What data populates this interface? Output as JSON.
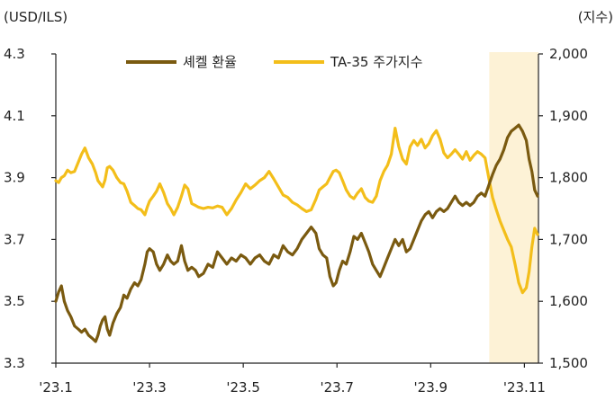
{
  "chart_data": {
    "type": "line",
    "title": "",
    "left_axis": {
      "unit_label": "(USD/ILS)",
      "min": 3.3,
      "max": 4.3,
      "ticks": [
        "3.3",
        "3.5",
        "3.7",
        "3.9",
        "4.1",
        "4.3"
      ]
    },
    "right_axis": {
      "unit_label": "(지수)",
      "min": 1500,
      "max": 2000,
      "ticks": [
        "1,500",
        "1,600",
        "1,700",
        "1,800",
        "1,900",
        "2,000"
      ]
    },
    "x_axis": {
      "ticks": [
        "'23.1",
        "'23.3",
        "'23.5",
        "'23.7",
        "'23.9",
        "'23.11"
      ],
      "range_months": [
        0,
        10.3
      ]
    },
    "highlight": {
      "from_month": 9.25,
      "to_month": 10.3,
      "color": "#fdf2d6"
    },
    "legend_position": "top-center",
    "series": [
      {
        "name": "셰켈 환율",
        "axis": "left",
        "color": "#7a5a10",
        "points": [
          [
            0.0,
            3.5
          ],
          [
            0.06,
            3.53
          ],
          [
            0.12,
            3.55
          ],
          [
            0.18,
            3.5
          ],
          [
            0.25,
            3.47
          ],
          [
            0.32,
            3.45
          ],
          [
            0.4,
            3.42
          ],
          [
            0.48,
            3.41
          ],
          [
            0.55,
            3.4
          ],
          [
            0.62,
            3.41
          ],
          [
            0.7,
            3.39
          ],
          [
            0.78,
            3.38
          ],
          [
            0.85,
            3.37
          ],
          [
            0.9,
            3.39
          ],
          [
            0.95,
            3.42
          ],
          [
            1.0,
            3.44
          ],
          [
            1.05,
            3.45
          ],
          [
            1.1,
            3.41
          ],
          [
            1.15,
            3.39
          ],
          [
            1.22,
            3.43
          ],
          [
            1.3,
            3.46
          ],
          [
            1.38,
            3.48
          ],
          [
            1.45,
            3.52
          ],
          [
            1.52,
            3.51
          ],
          [
            1.6,
            3.54
          ],
          [
            1.68,
            3.56
          ],
          [
            1.75,
            3.55
          ],
          [
            1.82,
            3.57
          ],
          [
            1.9,
            3.62
          ],
          [
            1.95,
            3.66
          ],
          [
            2.0,
            3.67
          ],
          [
            2.08,
            3.66
          ],
          [
            2.15,
            3.62
          ],
          [
            2.22,
            3.6
          ],
          [
            2.3,
            3.62
          ],
          [
            2.38,
            3.65
          ],
          [
            2.45,
            3.63
          ],
          [
            2.52,
            3.62
          ],
          [
            2.6,
            3.63
          ],
          [
            2.68,
            3.68
          ],
          [
            2.75,
            3.63
          ],
          [
            2.82,
            3.6
          ],
          [
            2.9,
            3.61
          ],
          [
            2.98,
            3.6
          ],
          [
            3.05,
            3.58
          ],
          [
            3.15,
            3.59
          ],
          [
            3.25,
            3.62
          ],
          [
            3.35,
            3.61
          ],
          [
            3.45,
            3.66
          ],
          [
            3.55,
            3.64
          ],
          [
            3.65,
            3.62
          ],
          [
            3.75,
            3.64
          ],
          [
            3.85,
            3.63
          ],
          [
            3.95,
            3.65
          ],
          [
            4.05,
            3.64
          ],
          [
            4.15,
            3.62
          ],
          [
            4.25,
            3.64
          ],
          [
            4.35,
            3.65
          ],
          [
            4.45,
            3.63
          ],
          [
            4.55,
            3.62
          ],
          [
            4.65,
            3.65
          ],
          [
            4.75,
            3.64
          ],
          [
            4.85,
            3.68
          ],
          [
            4.95,
            3.66
          ],
          [
            5.05,
            3.65
          ],
          [
            5.15,
            3.67
          ],
          [
            5.25,
            3.7
          ],
          [
            5.35,
            3.72
          ],
          [
            5.45,
            3.74
          ],
          [
            5.55,
            3.72
          ],
          [
            5.62,
            3.67
          ],
          [
            5.7,
            3.65
          ],
          [
            5.78,
            3.64
          ],
          [
            5.85,
            3.58
          ],
          [
            5.92,
            3.55
          ],
          [
            5.98,
            3.56
          ],
          [
            6.05,
            3.6
          ],
          [
            6.12,
            3.63
          ],
          [
            6.2,
            3.62
          ],
          [
            6.28,
            3.66
          ],
          [
            6.36,
            3.71
          ],
          [
            6.44,
            3.7
          ],
          [
            6.52,
            3.72
          ],
          [
            6.6,
            3.69
          ],
          [
            6.68,
            3.66
          ],
          [
            6.76,
            3.62
          ],
          [
            6.84,
            3.6
          ],
          [
            6.92,
            3.58
          ],
          [
            7.0,
            3.61
          ],
          [
            7.08,
            3.64
          ],
          [
            7.16,
            3.67
          ],
          [
            7.24,
            3.7
          ],
          [
            7.32,
            3.68
          ],
          [
            7.4,
            3.7
          ],
          [
            7.48,
            3.66
          ],
          [
            7.56,
            3.67
          ],
          [
            7.64,
            3.7
          ],
          [
            7.72,
            3.73
          ],
          [
            7.8,
            3.76
          ],
          [
            7.88,
            3.78
          ],
          [
            7.96,
            3.79
          ],
          [
            8.04,
            3.77
          ],
          [
            8.12,
            3.79
          ],
          [
            8.2,
            3.8
          ],
          [
            8.28,
            3.79
          ],
          [
            8.36,
            3.8
          ],
          [
            8.44,
            3.82
          ],
          [
            8.52,
            3.84
          ],
          [
            8.6,
            3.82
          ],
          [
            8.68,
            3.81
          ],
          [
            8.76,
            3.82
          ],
          [
            8.84,
            3.81
          ],
          [
            8.92,
            3.82
          ],
          [
            9.0,
            3.84
          ],
          [
            9.08,
            3.85
          ],
          [
            9.16,
            3.84
          ],
          [
            9.25,
            3.88
          ],
          [
            9.32,
            3.91
          ],
          [
            9.4,
            3.94
          ],
          [
            9.48,
            3.96
          ],
          [
            9.56,
            3.99
          ],
          [
            9.64,
            4.03
          ],
          [
            9.72,
            4.05
          ],
          [
            9.8,
            4.06
          ],
          [
            9.88,
            4.07
          ],
          [
            9.96,
            4.05
          ],
          [
            10.04,
            4.02
          ],
          [
            10.1,
            3.96
          ],
          [
            10.16,
            3.92
          ],
          [
            10.22,
            3.86
          ],
          [
            10.28,
            3.84
          ]
        ]
      },
      {
        "name": "TA-35 주가지수",
        "axis": "right",
        "color": "#f3be1a",
        "points": [
          [
            0.0,
            1795
          ],
          [
            0.06,
            1792
          ],
          [
            0.12,
            1800
          ],
          [
            0.18,
            1803
          ],
          [
            0.25,
            1812
          ],
          [
            0.32,
            1808
          ],
          [
            0.4,
            1810
          ],
          [
            0.48,
            1825
          ],
          [
            0.55,
            1838
          ],
          [
            0.62,
            1848
          ],
          [
            0.7,
            1832
          ],
          [
            0.78,
            1822
          ],
          [
            0.85,
            1808
          ],
          [
            0.9,
            1795
          ],
          [
            0.95,
            1790
          ],
          [
            1.0,
            1785
          ],
          [
            1.05,
            1796
          ],
          [
            1.1,
            1816
          ],
          [
            1.15,
            1818
          ],
          [
            1.22,
            1812
          ],
          [
            1.3,
            1800
          ],
          [
            1.38,
            1792
          ],
          [
            1.45,
            1790
          ],
          [
            1.52,
            1778
          ],
          [
            1.6,
            1760
          ],
          [
            1.68,
            1755
          ],
          [
            1.75,
            1750
          ],
          [
            1.82,
            1748
          ],
          [
            1.9,
            1740
          ],
          [
            1.95,
            1752
          ],
          [
            2.0,
            1762
          ],
          [
            2.08,
            1770
          ],
          [
            2.15,
            1778
          ],
          [
            2.22,
            1790
          ],
          [
            2.3,
            1776
          ],
          [
            2.38,
            1758
          ],
          [
            2.45,
            1750
          ],
          [
            2.52,
            1740
          ],
          [
            2.6,
            1752
          ],
          [
            2.68,
            1770
          ],
          [
            2.75,
            1788
          ],
          [
            2.82,
            1782
          ],
          [
            2.9,
            1758
          ],
          [
            2.98,
            1755
          ],
          [
            3.05,
            1752
          ],
          [
            3.15,
            1750
          ],
          [
            3.25,
            1752
          ],
          [
            3.35,
            1751
          ],
          [
            3.45,
            1754
          ],
          [
            3.55,
            1752
          ],
          [
            3.65,
            1740
          ],
          [
            3.75,
            1750
          ],
          [
            3.85,
            1764
          ],
          [
            3.95,
            1776
          ],
          [
            4.05,
            1790
          ],
          [
            4.15,
            1782
          ],
          [
            4.25,
            1788
          ],
          [
            4.35,
            1795
          ],
          [
            4.45,
            1800
          ],
          [
            4.55,
            1810
          ],
          [
            4.65,
            1798
          ],
          [
            4.75,
            1785
          ],
          [
            4.85,
            1772
          ],
          [
            4.95,
            1768
          ],
          [
            5.05,
            1760
          ],
          [
            5.15,
            1756
          ],
          [
            5.25,
            1750
          ],
          [
            5.35,
            1745
          ],
          [
            5.45,
            1748
          ],
          [
            5.55,
            1765
          ],
          [
            5.62,
            1780
          ],
          [
            5.7,
            1785
          ],
          [
            5.78,
            1790
          ],
          [
            5.85,
            1800
          ],
          [
            5.92,
            1810
          ],
          [
            5.98,
            1812
          ],
          [
            6.05,
            1808
          ],
          [
            6.12,
            1795
          ],
          [
            6.2,
            1780
          ],
          [
            6.28,
            1770
          ],
          [
            6.36,
            1766
          ],
          [
            6.44,
            1775
          ],
          [
            6.52,
            1782
          ],
          [
            6.6,
            1768
          ],
          [
            6.68,
            1762
          ],
          [
            6.76,
            1760
          ],
          [
            6.84,
            1770
          ],
          [
            6.92,
            1795
          ],
          [
            7.0,
            1810
          ],
          [
            7.08,
            1820
          ],
          [
            7.16,
            1838
          ],
          [
            7.24,
            1880
          ],
          [
            7.32,
            1850
          ],
          [
            7.4,
            1830
          ],
          [
            7.48,
            1822
          ],
          [
            7.56,
            1850
          ],
          [
            7.64,
            1860
          ],
          [
            7.72,
            1852
          ],
          [
            7.8,
            1862
          ],
          [
            7.88,
            1848
          ],
          [
            7.96,
            1855
          ],
          [
            8.04,
            1868
          ],
          [
            8.12,
            1876
          ],
          [
            8.2,
            1862
          ],
          [
            8.28,
            1840
          ],
          [
            8.36,
            1832
          ],
          [
            8.44,
            1838
          ],
          [
            8.52,
            1845
          ],
          [
            8.6,
            1838
          ],
          [
            8.68,
            1830
          ],
          [
            8.76,
            1842
          ],
          [
            8.84,
            1828
          ],
          [
            8.92,
            1836
          ],
          [
            9.0,
            1842
          ],
          [
            9.08,
            1838
          ],
          [
            9.16,
            1832
          ],
          [
            9.25,
            1795
          ],
          [
            9.32,
            1768
          ],
          [
            9.4,
            1748
          ],
          [
            9.48,
            1730
          ],
          [
            9.56,
            1715
          ],
          [
            9.64,
            1700
          ],
          [
            9.72,
            1688
          ],
          [
            9.8,
            1660
          ],
          [
            9.88,
            1630
          ],
          [
            9.96,
            1614
          ],
          [
            10.04,
            1622
          ],
          [
            10.1,
            1648
          ],
          [
            10.16,
            1688
          ],
          [
            10.22,
            1718
          ],
          [
            10.28,
            1708
          ]
        ]
      }
    ]
  }
}
